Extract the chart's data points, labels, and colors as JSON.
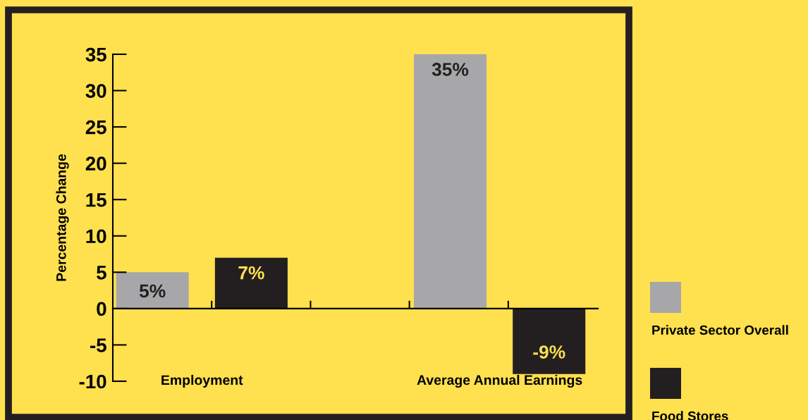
{
  "chart_data": {
    "type": "bar",
    "ylabel": "Percentage Change",
    "categories": [
      "Employment",
      "Average Annual Earnings"
    ],
    "series": [
      {
        "name": "Private Sector Overall",
        "color": "#a7a7a9",
        "values": [
          5,
          35
        ],
        "value_labels": [
          "5%",
          "35%"
        ]
      },
      {
        "name": "Food Stores",
        "color": "#231f20",
        "values": [
          7,
          -9
        ],
        "value_labels": [
          "7%",
          "-9%"
        ]
      }
    ],
    "ylim": [
      -10,
      35
    ],
    "yticks": [
      -10,
      -5,
      0,
      5,
      10,
      15,
      20,
      25,
      30,
      35
    ],
    "legend": "bottom right"
  }
}
